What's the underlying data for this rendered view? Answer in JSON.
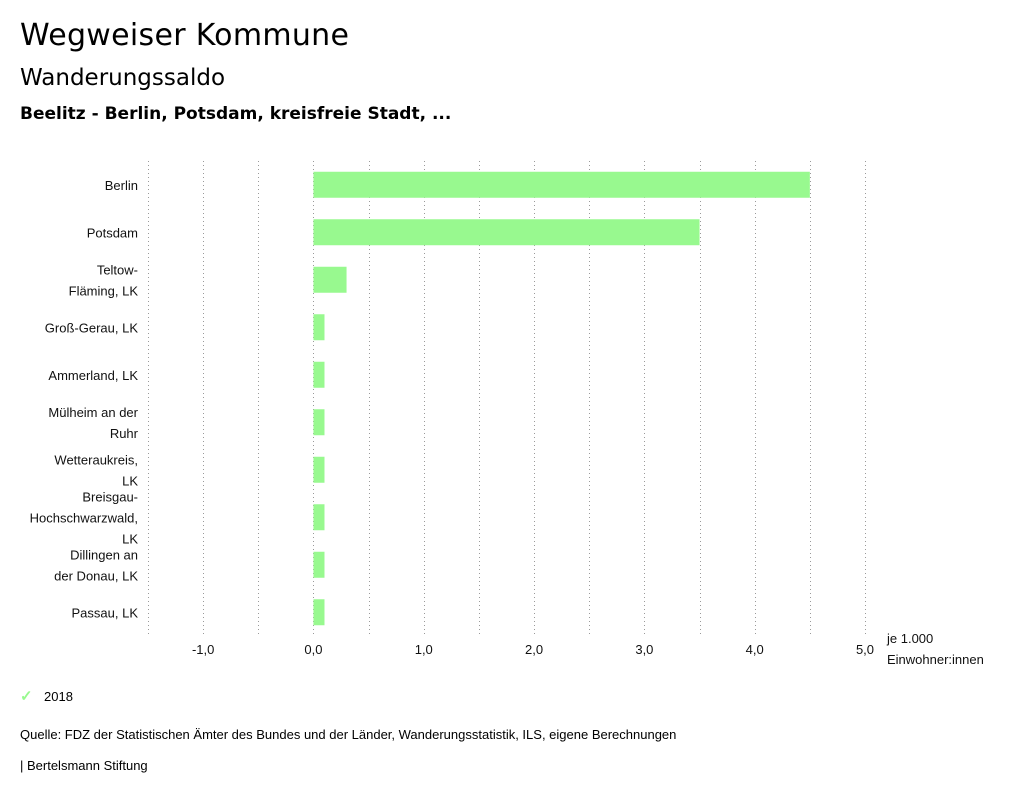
{
  "header": {
    "title": "Wegweiser Kommune",
    "subtitle": "Wanderungssaldo",
    "region": "Beelitz - Berlin, Potsdam, kreisfreie Stadt, ..."
  },
  "chart_data": {
    "type": "bar",
    "orientation": "horizontal",
    "categories": [
      [
        "Berlin"
      ],
      [
        "Potsdam"
      ],
      [
        "Teltow-",
        "Fläming, LK"
      ],
      [
        "Groß-Gerau, LK"
      ],
      [
        "Ammerland, LK"
      ],
      [
        "Mülheim an der",
        "Ruhr"
      ],
      [
        "Wetteraukreis,",
        "LK"
      ],
      [
        "Breisgau-",
        "Hochschwarzwald,",
        "LK"
      ],
      [
        "Dillingen an",
        "der Donau, LK"
      ],
      [
        "Passau, LK"
      ]
    ],
    "series": [
      {
        "name": "2018",
        "values": [
          4.5,
          3.5,
          0.3,
          0.1,
          0.1,
          0.1,
          0.1,
          0.1,
          0.1,
          0.1
        ]
      }
    ],
    "xlim": [
      -1.5,
      5.0
    ],
    "xticks": [
      -1.0,
      0.0,
      1.0,
      2.0,
      3.0,
      4.0,
      5.0
    ],
    "xtick_labels": [
      "-1,0",
      "0,0",
      "1,0",
      "2,0",
      "3,0",
      "4,0",
      "5,0"
    ],
    "unit_label": [
      "je 1.000",
      "Einwohner:innen"
    ],
    "bar_color": "#98f98f",
    "grid": true
  },
  "legend": {
    "label": "2018",
    "color": "#98f98f"
  },
  "footer": {
    "source": "Quelle: FDZ der Statistischen Ämter des Bundes und der Länder, Wanderungsstatistik, ILS, eigene Berechnungen",
    "brand": "| Bertelsmann Stiftung"
  }
}
